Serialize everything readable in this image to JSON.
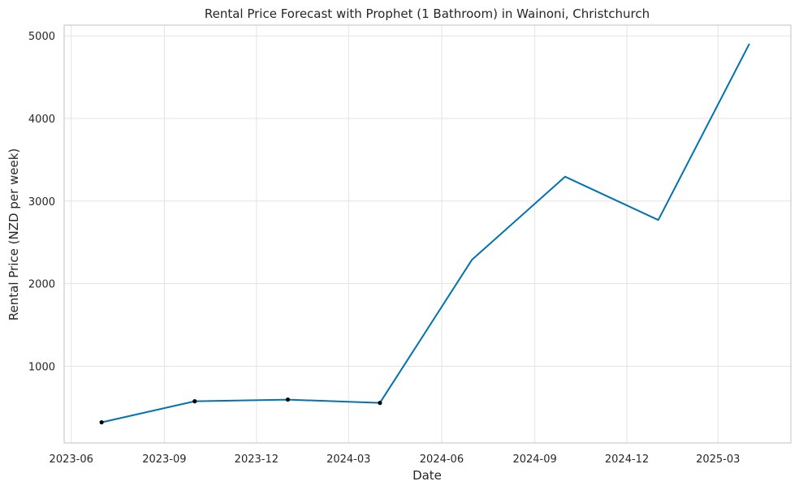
{
  "chart_data": {
    "type": "line",
    "title": "Rental Price Forecast with Prophet (1 Bathroom) in Wainoni, Christchurch",
    "xlabel": "Date",
    "ylabel": "Rental Price (NZD per week)",
    "x_ticks": [
      "2023-06",
      "2023-09",
      "2023-12",
      "2024-03",
      "2024-06",
      "2024-09",
      "2024-12",
      "2025-03"
    ],
    "y_ticks": [
      1000,
      2000,
      3000,
      4000,
      5000
    ],
    "xlim": [
      "2023-05-25",
      "2025-05-12"
    ],
    "ylim": [
      70,
      5130
    ],
    "grid": true,
    "series": [
      {
        "color": "#0072b2",
        "points": [
          {
            "x": "2023-07-01",
            "y": 320
          },
          {
            "x": "2023-10-01",
            "y": 575
          },
          {
            "x": "2024-01-01",
            "y": 595
          },
          {
            "x": "2024-04-01",
            "y": 555
          },
          {
            "x": "2024-07-01",
            "y": 2290
          },
          {
            "x": "2024-10-01",
            "y": 3295
          },
          {
            "x": "2025-01-01",
            "y": 2770
          },
          {
            "x": "2025-04-01",
            "y": 4905
          }
        ]
      }
    ],
    "observed": {
      "color": "#000000",
      "points": [
        {
          "x": "2023-07-01",
          "y": 320
        },
        {
          "x": "2023-10-01",
          "y": 575
        },
        {
          "x": "2024-01-01",
          "y": 595
        },
        {
          "x": "2024-04-01",
          "y": 555
        }
      ]
    }
  }
}
